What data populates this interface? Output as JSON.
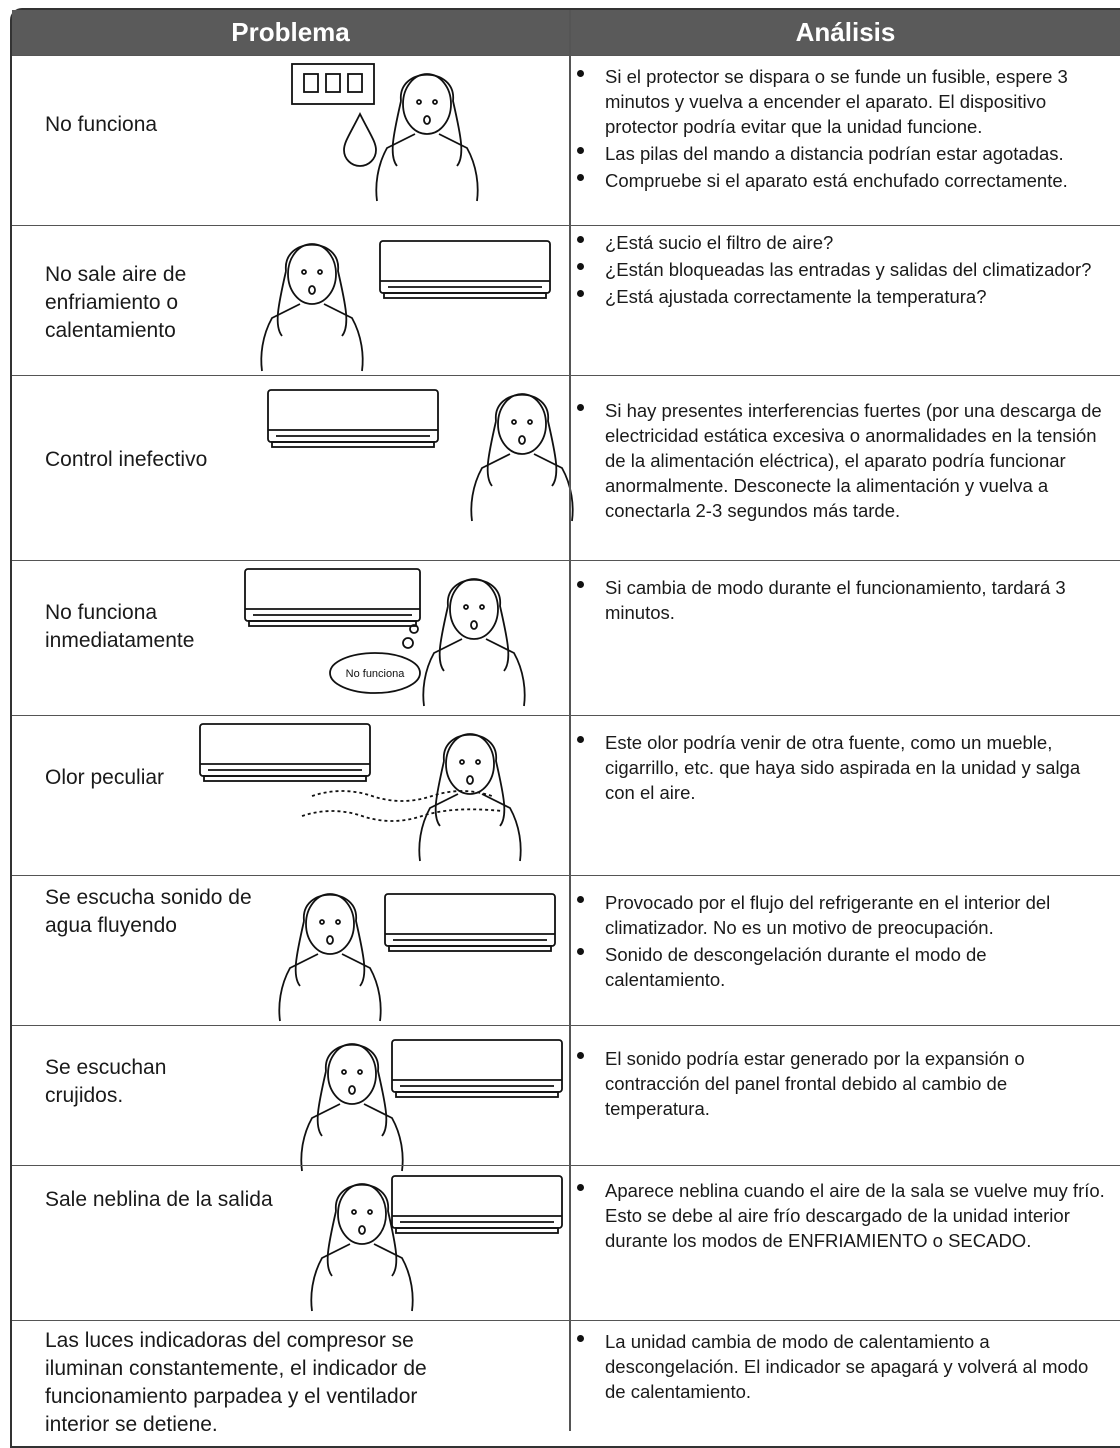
{
  "table": {
    "headers": [
      "Problema",
      "Análisis"
    ],
    "rows": [
      {
        "problem": "No funciona",
        "analysis": [
          "Si el protector se dispara o se funde un fusible, espere 3 minutos y vuelva a encender el aparato. El dispositivo protector podría evitar que la unidad funcione.",
          "Las pilas del mando a distancia podrían estar agotadas.",
          "Compruebe si el aparato está enchufado correctamente."
        ]
      },
      {
        "problem": "No sale aire de enfriamiento o calentamiento",
        "analysis": [
          "¿Está sucio el filtro de aire?",
          "¿Están bloqueadas las entradas y salidas del climatizador?",
          "¿Está ajustada correctamente la temperatura?"
        ]
      },
      {
        "problem": "Control inefectivo",
        "analysis": [
          "Si hay presentes interferencias fuertes (por una descarga de electricidad estática excesiva o anormalidades en la tensión de la alimentación eléctrica), el aparato podría funcionar anormalmente. Desconecte la alimentación y vuelva a conectarla 2-3 segundos más tarde."
        ]
      },
      {
        "problem": "No funciona inmediatamente",
        "bubble": "No funciona",
        "analysis": [
          "Si cambia de modo durante el funcionamiento, tardará 3 minutos."
        ]
      },
      {
        "problem": "Olor peculiar",
        "analysis": [
          "Este olor podría venir de otra fuente, como un mueble, cigarrillo, etc. que haya sido aspirada en la unidad y salga con el aire."
        ]
      },
      {
        "problem": "Se escucha sonido de agua fluyendo",
        "analysis": [
          "Provocado por el flujo del refrigerante en el interior del climatizador. No es un motivo de preocupación.",
          "Sonido de descongelación durante el modo de calentamiento."
        ]
      },
      {
        "problem": "Se escuchan crujidos.",
        "analysis": [
          "El sonido podría estar generado por la expansión o contracción del panel frontal debido al cambio de temperatura."
        ]
      },
      {
        "problem": "Sale neblina de la salida",
        "analysis": [
          "Aparece neblina cuando el aire de la sala se vuelve muy frío. Esto se debe al aire frío descargado de la unidad interior durante los modos de ENFRIAMIENTO o SECADO."
        ]
      },
      {
        "problem": "Las luces indicadoras del compresor se iluminan constantemente, el indicador de funcionamiento parpadea y el ventilador interior se detiene.",
        "analysis": [
          "La unidad cambia de modo de calentamiento a descongelación. El indicador se apagará y volverá al modo de calentamiento."
        ]
      }
    ]
  }
}
